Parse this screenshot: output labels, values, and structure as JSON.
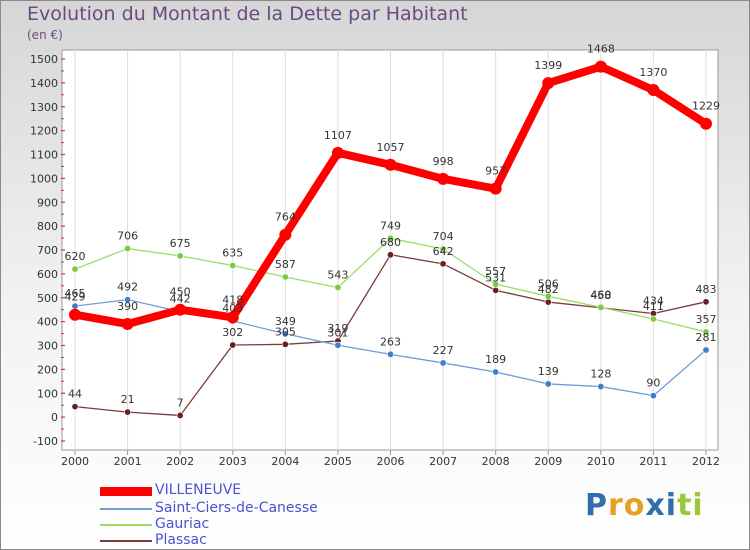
{
  "chart_data": {
    "type": "line",
    "title": "Evolution du Montant de la Dette par Habitant",
    "unit": "(en €)",
    "x": [
      "2000",
      "2001",
      "2002",
      "2003",
      "2004",
      "2005",
      "2006",
      "2007",
      "2008",
      "2009",
      "2010",
      "2011",
      "2012"
    ],
    "ylim": [
      -100,
      1500
    ],
    "yticks": [
      -100,
      0,
      100,
      200,
      300,
      400,
      500,
      600,
      700,
      800,
      900,
      1000,
      1100,
      1200,
      1300,
      1400,
      1500
    ],
    "grid": "vertical",
    "legend_position": "bottom-left",
    "series": [
      {
        "name": "VILLENEUVE",
        "color": "#ff0000",
        "marker": "#ff0000",
        "values": [
          429,
          390,
          450,
          418,
          764,
          1107,
          1057,
          998,
          957,
          1399,
          1468,
          1370,
          1229
        ],
        "labels": [
          "429",
          "390",
          "450",
          "418",
          "764",
          "1107",
          "1057",
          "998",
          "957",
          "1399",
          "1468",
          "1370",
          "1229"
        ]
      },
      {
        "name": "Saint-Ciers-de-Canesse",
        "color": "#6a9ed4",
        "marker": "#3a7fc8",
        "values": [
          465,
          492,
          442,
          403,
          349,
          301,
          263,
          227,
          189,
          139,
          128,
          90,
          281
        ],
        "labels": [
          "465",
          "492",
          "442",
          "403",
          "349",
          "301",
          "263",
          "227",
          "189",
          "139",
          "128",
          "90",
          "281"
        ]
      },
      {
        "name": "Gauriac",
        "color": "#99dd66",
        "marker": "#77cc44",
        "values": [
          620,
          706,
          675,
          635,
          587,
          543,
          749,
          704,
          557,
          506,
          460,
          411,
          357
        ],
        "labels": [
          "620",
          "706",
          "675",
          "635",
          "587",
          "543",
          "749",
          "704",
          "557",
          "506",
          "460",
          "411",
          "357"
        ]
      },
      {
        "name": "Plassac",
        "color": "#7a3a3a",
        "marker": "#6a2020",
        "values": [
          44,
          21,
          7,
          302,
          305,
          319,
          680,
          642,
          531,
          482,
          458,
          434,
          483
        ],
        "labels": [
          "44",
          "21",
          "7",
          "302",
          "305",
          "319",
          "680",
          "642",
          "531",
          "482",
          "458",
          "434",
          "483"
        ]
      }
    ]
  },
  "brand": {
    "text": "Proxiti",
    "letters": [
      "P",
      "r",
      "o",
      "x",
      "i",
      "t",
      "i"
    ],
    "colors": [
      "#2f6fb0",
      "#e8a020",
      "#e8a020",
      "#2f6fb0",
      "#2f6fb0",
      "#9ac83a",
      "#9ac83a"
    ]
  }
}
